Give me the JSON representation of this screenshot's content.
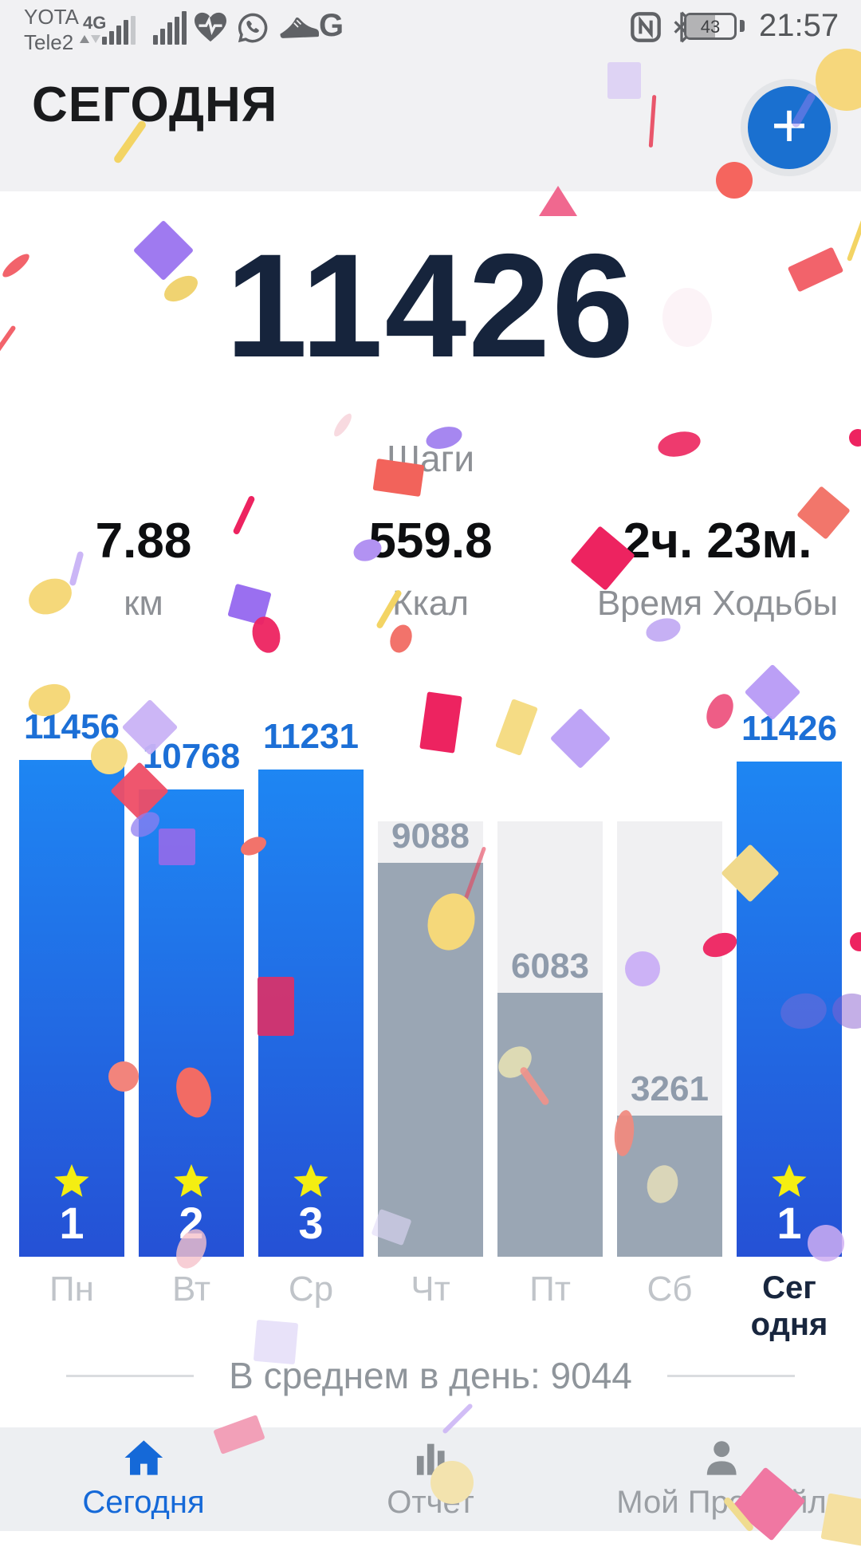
{
  "status_bar": {
    "carrier1": "YOTA",
    "network": "4G",
    "carrier2": "Tele2",
    "battery": "43",
    "time": "21:57",
    "left_icons": [
      "signal-bars-1",
      "signal-bars-2",
      "heart-rate-icon",
      "whatsapp-icon",
      "shoe-icon",
      "google-icon"
    ],
    "right_icons": [
      "nfc-icon",
      "bluetooth-icon",
      "battery-indicator"
    ]
  },
  "header": {
    "title": "СЕГОДНЯ",
    "add_label": "+"
  },
  "today": {
    "steps": "11426",
    "steps_label": "Шаги",
    "stats": [
      {
        "value": "7.88",
        "label": "км"
      },
      {
        "value": "559.8",
        "label": "Ккал"
      },
      {
        "value": "2ч. 23м.",
        "label": "Время Ходьбы"
      }
    ]
  },
  "chart_data": {
    "type": "bar",
    "categories": [
      "Пн",
      "Вт",
      "Ср",
      "Чт",
      "Пт",
      "Сб",
      "Сегодня"
    ],
    "day_labels": [
      "Пн",
      "Вт",
      "Ср",
      "Чт",
      "Пт",
      "Сб",
      "Сег\nодня"
    ],
    "values": [
      11456,
      10768,
      11231,
      9088,
      6083,
      3261,
      11426
    ],
    "achieved": [
      true,
      true,
      true,
      false,
      false,
      false,
      true
    ],
    "star_ranks": [
      1,
      2,
      3,
      null,
      null,
      null,
      1
    ],
    "goal": 10000,
    "ymax": 11456,
    "average": 9044,
    "average_label": "В среднем в день: 9044",
    "title": "",
    "xlabel": "",
    "ylabel": "",
    "grid": false,
    "legend": "none",
    "colors": {
      "achieved_bar_top": "#1e86f3",
      "achieved_bar_bottom": "#2551d5",
      "missed_bar": "#9aa6b4",
      "goal_track": "#f0f0f2",
      "achieved_label": "#1c6fd6",
      "missed_label": "#8f9bab",
      "star": "#f4ee12",
      "rank_text": "#ffffff"
    }
  },
  "nav": {
    "items": [
      {
        "label": "Сегодня",
        "icon": "home-icon",
        "active": true
      },
      {
        "label": "Отчет",
        "icon": "report-icon",
        "active": false
      },
      {
        "label": "Мой Профайл",
        "icon": "profile-icon",
        "active": false
      }
    ]
  },
  "confetti": {
    "pieces": [
      [
        "e",
        1062,
        100,
        78,
        78,
        0,
        "#f6d77c",
        1
      ],
      [
        "l",
        163,
        178,
        10,
        62,
        35,
        "#f3d464",
        1
      ],
      [
        "r",
        783,
        101,
        42,
        46,
        0,
        "#cdbaf4",
        0.55
      ],
      [
        "l",
        818,
        152,
        5,
        66,
        4,
        "#e8455c",
        0.9
      ],
      [
        "t",
        700,
        252,
        48,
        38,
        0,
        "#f0688f",
        1
      ],
      [
        "e",
        20,
        333,
        42,
        14,
        -40,
        "#f2636b",
        1
      ],
      [
        "r",
        205,
        314,
        54,
        54,
        45,
        "#9f7af0",
        1
      ],
      [
        "e",
        227,
        362,
        46,
        26,
        -30,
        "#f0d371",
        1
      ],
      [
        "e",
        921,
        226,
        46,
        46,
        0,
        "#f5655e",
        1
      ],
      [
        "r",
        1023,
        338,
        62,
        34,
        -25,
        "#f2636b",
        1
      ],
      [
        "l",
        1076,
        296,
        6,
        66,
        20,
        "#f3d464",
        1
      ],
      [
        "e",
        862,
        398,
        62,
        74,
        0,
        "#f7e2ea",
        0.4
      ],
      [
        "e",
        430,
        533,
        34,
        12,
        -55,
        "#f5c6cf",
        0.65
      ],
      [
        "e",
        557,
        549,
        46,
        26,
        -15,
        "#a687f0",
        1
      ],
      [
        "e",
        852,
        557,
        54,
        30,
        -12,
        "#ee3a6e",
        1
      ],
      [
        "r",
        500,
        599,
        60,
        40,
        8,
        "#f2635b",
        1
      ],
      [
        "e",
        1076,
        549,
        22,
        22,
        0,
        "#ed2360",
        1
      ],
      [
        "r",
        756,
        700,
        58,
        58,
        40,
        "#ed2360",
        1
      ],
      [
        "r",
        1033,
        643,
        48,
        48,
        40,
        "#f2766b",
        1
      ],
      [
        "l",
        306,
        646,
        8,
        52,
        25,
        "#ed2360",
        1
      ],
      [
        "e",
        461,
        690,
        36,
        26,
        -20,
        "#b292f2",
        1
      ],
      [
        "e",
        63,
        748,
        56,
        42,
        -25,
        "#f5d87a",
        1
      ],
      [
        "l",
        96,
        713,
        8,
        44,
        15,
        "#c5aef5",
        0.9
      ],
      [
        "r",
        313,
        758,
        46,
        42,
        15,
        "#9a6ff0",
        1
      ],
      [
        "e",
        334,
        796,
        34,
        46,
        -15,
        "#ed2360",
        0.95
      ],
      [
        "l",
        488,
        764,
        8,
        54,
        30,
        "#f3d464",
        1
      ],
      [
        "e",
        503,
        801,
        26,
        36,
        20,
        "#f2736b",
        1
      ],
      [
        "e",
        832,
        790,
        44,
        28,
        -15,
        "#c0a7f3",
        0.9
      ],
      [
        "e",
        62,
        878,
        54,
        38,
        -20,
        "#f5d87a",
        1
      ],
      [
        "r",
        188,
        912,
        50,
        50,
        45,
        "#c9b2f5",
        0.95
      ],
      [
        "e",
        137,
        948,
        46,
        46,
        0,
        "#f5dc85",
        1
      ],
      [
        "r",
        175,
        992,
        52,
        52,
        45,
        "#ee4d66",
        0.95
      ],
      [
        "e",
        182,
        1034,
        40,
        26,
        -35,
        "#8f7df0",
        0.75
      ],
      [
        "r",
        222,
        1062,
        46,
        46,
        0,
        "#a468e8",
        0.8
      ],
      [
        "e",
        318,
        1061,
        34,
        20,
        -25,
        "#f2736b",
        1
      ],
      [
        "r",
        553,
        906,
        44,
        72,
        8,
        "#ed2360",
        1
      ],
      [
        "r",
        648,
        912,
        34,
        64,
        20,
        "#f5dc85",
        1
      ],
      [
        "r",
        728,
        926,
        54,
        54,
        45,
        "#b79af5",
        0.9
      ],
      [
        "e",
        903,
        892,
        30,
        46,
        25,
        "#ee5d86",
        1
      ],
      [
        "r",
        969,
        868,
        50,
        50,
        45,
        "#b79af5",
        0.95
      ],
      [
        "l",
        595,
        1096,
        5,
        72,
        20,
        "#e8435a",
        0.6
      ],
      [
        "e",
        566,
        1156,
        58,
        72,
        15,
        "#f5d87a",
        1
      ],
      [
        "r",
        346,
        1262,
        46,
        74,
        0,
        "#d6336c",
        0.95
      ],
      [
        "e",
        155,
        1350,
        38,
        38,
        0,
        "#f2847c",
        1
      ],
      [
        "e",
        243,
        1370,
        42,
        64,
        -15,
        "#f26b64",
        1
      ],
      [
        "e",
        646,
        1332,
        46,
        34,
        -40,
        "#e9e3b4",
        0.85
      ],
      [
        "l",
        670,
        1362,
        9,
        56,
        -35,
        "#f29289",
        0.9
      ],
      [
        "e",
        783,
        1421,
        24,
        58,
        5,
        "#ef8a80",
        0.95
      ],
      [
        "e",
        831,
        1485,
        38,
        48,
        15,
        "#efe6bb",
        0.75
      ],
      [
        "e",
        903,
        1185,
        44,
        28,
        -20,
        "#ed2360",
        0.95
      ],
      [
        "r",
        941,
        1095,
        52,
        52,
        45,
        "#f0d98c",
        1
      ],
      [
        "e",
        1008,
        1268,
        58,
        44,
        -10,
        "#7a6bd8",
        0.5
      ],
      [
        "e",
        1070,
        1268,
        52,
        44,
        10,
        "#8a5fd0",
        0.5
      ],
      [
        "e",
        806,
        1215,
        44,
        44,
        0,
        "#c9aef5",
        0.95
      ],
      [
        "e",
        1078,
        1181,
        24,
        24,
        0,
        "#ed2360",
        1
      ],
      [
        "e",
        240,
        1566,
        34,
        52,
        25,
        "#f5c2ca",
        0.8
      ],
      [
        "r",
        491,
        1539,
        42,
        34,
        20,
        "#dfd9f7",
        0.6
      ],
      [
        "r",
        346,
        1683,
        52,
        52,
        5,
        "#ded5f7",
        0.7
      ],
      [
        "e",
        1036,
        1559,
        46,
        46,
        0,
        "#cfaef2",
        0.85
      ],
      [
        "r",
        300,
        1799,
        58,
        32,
        -20,
        "#f2a0b8",
        1
      ],
      [
        "l",
        574,
        1779,
        6,
        50,
        45,
        "#c9b2f5",
        0.85
      ],
      [
        "e",
        567,
        1859,
        54,
        54,
        0,
        "#f3e3ae",
        1
      ],
      [
        "r",
        964,
        1886,
        66,
        66,
        40,
        "#f077a2",
        1
      ],
      [
        "l",
        926,
        1899,
        9,
        52,
        -40,
        "#f0dc90",
        1
      ],
      [
        "r",
        1063,
        1906,
        58,
        58,
        10,
        "#f5e0a0",
        1
      ],
      [
        "l",
        5,
        428,
        6,
        46,
        35,
        "#f2636b",
        1
      ],
      [
        "l",
        1008,
        138,
        10,
        48,
        30,
        "#8f7df0",
        0.5
      ]
    ]
  }
}
